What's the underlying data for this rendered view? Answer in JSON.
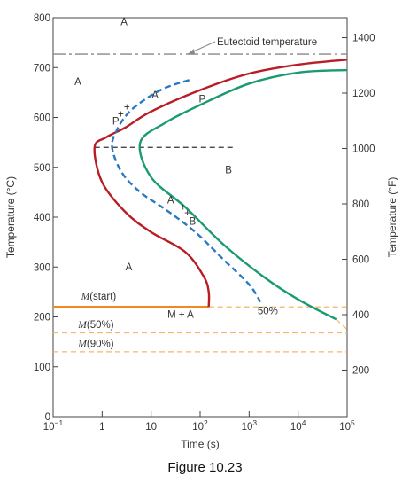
{
  "figure": {
    "caption": "Figure 10.23"
  },
  "chart_data": {
    "type": "line",
    "xlabel": "Time (s)",
    "ylabel": "Temperature (°C)",
    "ylabel_right": "Temperature (°F)",
    "x_scale": "log",
    "xlim": [
      0.1,
      100000
    ],
    "ylim": [
      0,
      800
    ],
    "y_right_lim_F": [
      32,
      1472
    ],
    "x_ticks": [
      {
        "value": 0.1,
        "base": "10",
        "exp": "−1"
      },
      {
        "value": 1,
        "base": "1",
        "exp": ""
      },
      {
        "value": 10,
        "base": "10",
        "exp": ""
      },
      {
        "value": 100,
        "base": "10",
        "exp": "2"
      },
      {
        "value": 1000,
        "base": "10",
        "exp": "3"
      },
      {
        "value": 10000,
        "base": "10",
        "exp": "4"
      },
      {
        "value": 100000,
        "base": "10",
        "exp": "5"
      }
    ],
    "y_ticks": [
      "0",
      "100",
      "200",
      "300",
      "400",
      "500",
      "600",
      "700",
      "800"
    ],
    "y_right_ticks": [
      "200",
      "400",
      "600",
      "800",
      "1000",
      "1200",
      "1400"
    ],
    "horizontal_lines": [
      {
        "name": "eutectoid",
        "label": "Eutectoid temperature",
        "y": 727,
        "style": "dash-dot",
        "color": "#888888"
      },
      {
        "name": "m-start",
        "label": "M(start)",
        "y": 220,
        "style": "solid",
        "color": "#f08a1f"
      },
      {
        "name": "m-start-extension",
        "y": 220,
        "style": "dashed",
        "color": "#f5b56a"
      },
      {
        "name": "m-50",
        "label": "M(50%)",
        "y": 168,
        "style": "dashed",
        "color": "#f5b56a"
      },
      {
        "name": "m-90",
        "label": "M(90%)",
        "y": 130,
        "style": "dashed",
        "color": "#f5b56a"
      },
      {
        "name": "nose-reference",
        "y": 540,
        "style": "dashed",
        "color": "#333333"
      }
    ],
    "series": [
      {
        "name": "start",
        "color": "#b81c24",
        "style": "solid",
        "points": [
          [
            100000,
            716
          ],
          [
            10000,
            706
          ],
          [
            1000,
            688
          ],
          [
            100,
            655
          ],
          [
            10,
            612
          ],
          [
            3,
            580
          ],
          [
            1.2,
            560
          ],
          [
            0.7,
            540
          ],
          [
            1,
            470
          ],
          [
            3,
            410
          ],
          [
            10,
            370
          ],
          [
            50,
            330
          ],
          [
            120,
            280
          ],
          [
            150,
            250
          ],
          [
            150,
            220
          ]
        ]
      },
      {
        "name": "50%",
        "color": "#2a78c0",
        "style": "dashed",
        "points": [
          [
            60,
            675
          ],
          [
            20,
            660
          ],
          [
            8,
            638
          ],
          [
            3.5,
            610
          ],
          [
            2,
            575
          ],
          [
            1.6,
            540
          ],
          [
            2.5,
            490
          ],
          [
            6,
            450
          ],
          [
            20,
            415
          ],
          [
            80,
            370
          ],
          [
            300,
            315
          ],
          [
            1000,
            265
          ],
          [
            1700,
            230
          ]
        ]
      },
      {
        "name": "finish",
        "color": "#1a9a72",
        "style": "solid",
        "points": [
          [
            100000,
            695
          ],
          [
            10000,
            690
          ],
          [
            1000,
            668
          ],
          [
            100,
            625
          ],
          [
            20,
            590
          ],
          [
            6,
            550
          ],
          [
            10,
            480
          ],
          [
            50,
            420
          ],
          [
            300,
            345
          ],
          [
            2000,
            280
          ],
          [
            10000,
            235
          ],
          [
            60000,
            195
          ]
        ]
      },
      {
        "name": "finish-extension",
        "color": "#f5b56a",
        "style": "dashed",
        "points": [
          [
            60000,
            195
          ],
          [
            100000,
            175
          ]
        ]
      }
    ],
    "annotations": [
      {
        "text": "A",
        "x": 2.8,
        "y": 785
      },
      {
        "text": "A",
        "x": 0.32,
        "y": 665
      },
      {
        "text": "A",
        "x": 3.5,
        "y": 293
      },
      {
        "text": "A",
        "x": 12,
        "y": 638
      },
      {
        "text": "P",
        "x": 110,
        "y": 630
      },
      {
        "text": "P",
        "x": 1.9,
        "y": 586
      },
      {
        "text": "+",
        "x": 3.2,
        "y": 614
      },
      {
        "text": "+",
        "x": 2.4,
        "y": 600
      },
      {
        "text": "A",
        "x": 25,
        "y": 428
      },
      {
        "text": "+",
        "x": 45,
        "y": 413
      },
      {
        "text": "+",
        "x": 55,
        "y": 402
      },
      {
        "text": "B",
        "x": 70,
        "y": 385
      },
      {
        "text": "B",
        "x": 380,
        "y": 488
      },
      {
        "text": "M(start)",
        "x": 0.85,
        "y": 235
      },
      {
        "text": "M + A",
        "x": 40,
        "y": 198
      },
      {
        "text": "50%",
        "x": 2400,
        "y": 205
      },
      {
        "text": "M(50%)",
        "x": 0.75,
        "y": 178
      },
      {
        "text": "M(90%)",
        "x": 0.75,
        "y": 140
      }
    ],
    "grid": false
  }
}
